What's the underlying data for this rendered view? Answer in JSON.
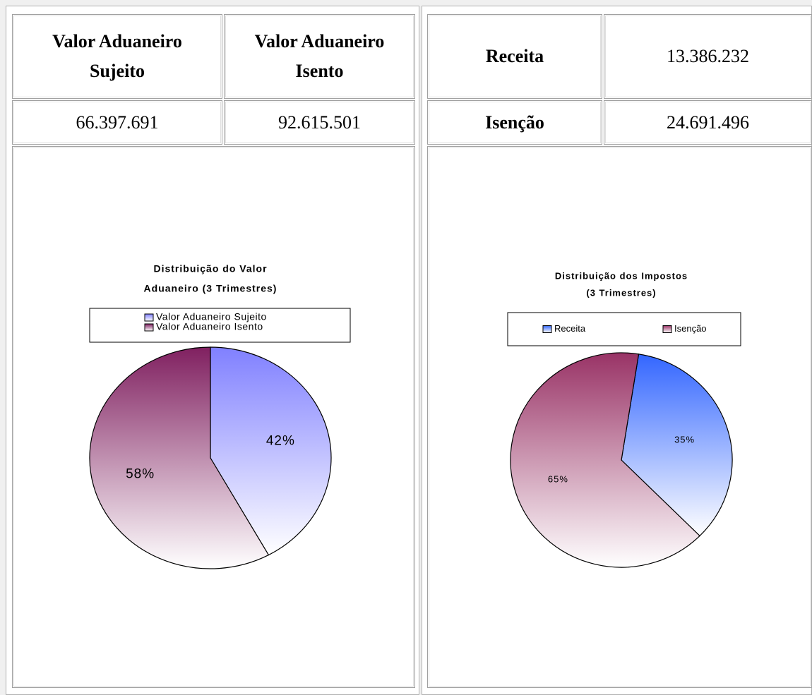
{
  "left_table": {
    "headers": [
      "Valor Aduaneiro Sujeito",
      "Valor Aduaneiro Isento"
    ],
    "row": [
      "66.397.691",
      "92.615.501"
    ]
  },
  "right_table": {
    "rows": [
      [
        "Receita",
        "13.386.232"
      ],
      [
        "Isenção",
        "24.691.496"
      ]
    ]
  },
  "chart_data": [
    {
      "type": "pie",
      "title": [
        "Distribuição do Valor",
        "Aduaneiro (3 Trimestres)"
      ],
      "categories": [
        "Valor Aduaneiro Sujeito",
        "Valor Aduaneiro Isento"
      ],
      "values": [
        42,
        58
      ],
      "value_labels": [
        "42%",
        "58%"
      ],
      "colors": [
        "#8080ff",
        "#802060"
      ],
      "legend": "top"
    },
    {
      "type": "pie",
      "title": [
        "Distribuição dos Impostos",
        "(3 Trimestres)"
      ],
      "categories": [
        "Receita",
        "Isenção"
      ],
      "values": [
        35,
        65
      ],
      "value_labels": [
        "35%",
        "65%"
      ],
      "colors": [
        "#3366ff",
        "#993366"
      ],
      "legend": "top"
    }
  ]
}
